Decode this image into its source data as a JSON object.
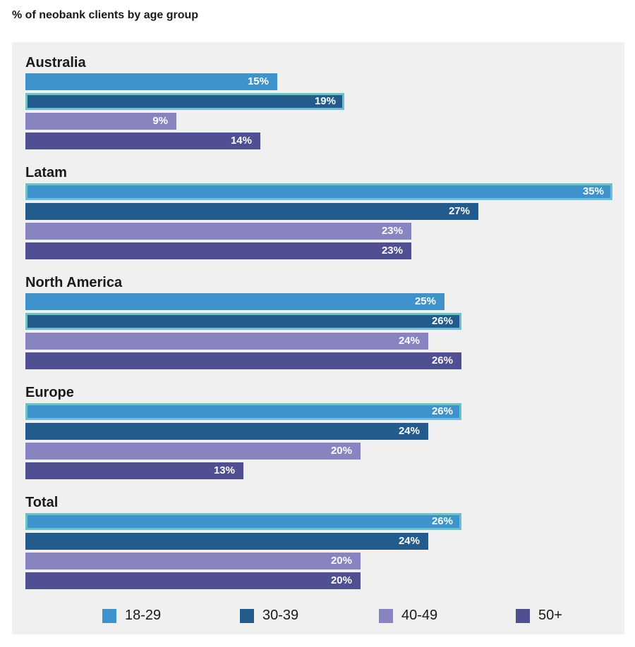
{
  "title": "% of neobank clients by age group",
  "colors": {
    "18-29": "#3f93cc",
    "30-39": "#235b8c",
    "40-49": "#8784c0",
    "50+": "#4f4f92",
    "highlight": "#6cc0cc"
  },
  "chart_data": {
    "type": "bar",
    "orientation": "horizontal",
    "title": "% of neobank clients by age group",
    "categories": [
      "Australia",
      "Latam",
      "North America",
      "Europe",
      "Total"
    ],
    "series": [
      {
        "name": "18-29",
        "values": [
          15,
          35,
          25,
          26,
          26
        ],
        "labels": [
          "15%",
          "35%",
          "25%",
          "26%",
          "26%"
        ]
      },
      {
        "name": "30-39",
        "values": [
          19,
          27,
          26,
          24,
          24
        ],
        "labels": [
          "19%",
          "27%",
          "26%",
          "24%",
          "24%"
        ]
      },
      {
        "name": "40-49",
        "values": [
          9,
          23,
          24,
          20,
          20
        ],
        "labels": [
          "9%",
          "23%",
          "24%",
          "20%",
          "20%"
        ]
      },
      {
        "name": "50+",
        "values": [
          14,
          23,
          26,
          13,
          20
        ],
        "labels": [
          "14%",
          "23%",
          "26%",
          "13%",
          "20%"
        ]
      }
    ],
    "highlighted": {
      "Australia": "30-39",
      "Latam": "18-29",
      "North America": "30-39",
      "Europe": "18-29",
      "Total": "18-29"
    },
    "legend": [
      "18-29",
      "30-39",
      "40-49",
      "50+"
    ],
    "legend_position": "bottom",
    "xlim": [
      0,
      35
    ],
    "grid": false
  }
}
